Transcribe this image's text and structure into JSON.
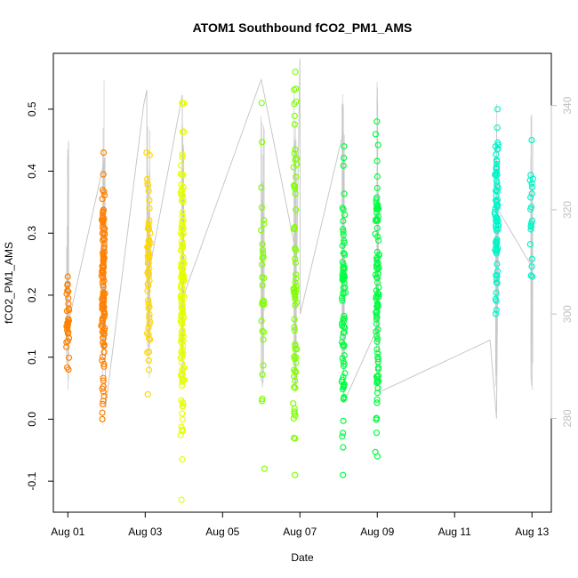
{
  "chart_data": {
    "type": "scatter",
    "title": "ATOM1 Southbound fCO2_PM1_AMS",
    "xlabel": "Date",
    "ylabel": "fCO2_PM1_AMS",
    "xlim": [
      "2016-07-31T15:00",
      "2016-08-13T12:00"
    ],
    "ylim": [
      -0.15,
      0.59
    ],
    "x_ticks": [
      "Aug 01",
      "Aug 03",
      "Aug 05",
      "Aug 07",
      "Aug 09",
      "Aug 11",
      "Aug 13"
    ],
    "y_ticks": [
      -0.1,
      0.0,
      0.1,
      0.2,
      0.3,
      0.4,
      0.5
    ],
    "right_axis": {
      "ylim": [
        262,
        350
      ],
      "ticks": [
        280,
        300,
        320,
        340
      ],
      "color": "#bfbfbf",
      "series_name": ""
    },
    "grid": false,
    "legend": "none",
    "series": [
      {
        "color": "#ff8000",
        "clusters": [
          {
            "date": "2016-08-01T00:00",
            "ymin": 0.08,
            "ymax": 0.23,
            "n": 30
          },
          {
            "date": "2016-08-01T22:00",
            "ymin": 0.0,
            "ymax": 0.43,
            "n": 120
          }
        ]
      },
      {
        "color": "#ffd700",
        "clusters": [
          {
            "date": "2016-08-03T02:00",
            "ymin": 0.04,
            "ymax": 0.43,
            "n": 60
          }
        ]
      },
      {
        "color": "#e6ff00",
        "clusters": [
          {
            "date": "2016-08-03T23:00",
            "ymin": -0.13,
            "ymax": 0.51,
            "n": 140
          }
        ]
      },
      {
        "color": "#80ff00",
        "clusters": [
          {
            "date": "2016-08-06T01:00",
            "ymin": -0.08,
            "ymax": 0.51,
            "n": 30
          },
          {
            "date": "2016-08-06T21:00",
            "ymin": -0.09,
            "ymax": 0.56,
            "n": 70
          }
        ]
      },
      {
        "color": "#00ff40",
        "clusters": [
          {
            "date": "2016-08-08T03:00",
            "ymin": -0.09,
            "ymax": 0.44,
            "n": 80
          },
          {
            "date": "2016-08-09T00:00",
            "ymin": -0.06,
            "ymax": 0.48,
            "n": 100
          }
        ]
      },
      {
        "color": "#00f5c8",
        "clusters": [
          {
            "date": "2016-08-12T02:00",
            "ymin": 0.17,
            "ymax": 0.5,
            "n": 80
          },
          {
            "date": "2016-08-13T00:00",
            "ymin": 0.23,
            "ymax": 0.45,
            "n": 20
          }
        ]
      }
    ],
    "line_series": {
      "color": "#c8c8c8",
      "axis": "right",
      "points": [
        {
          "date": "2016-08-01T00:00",
          "y": 330
        },
        {
          "date": "2016-08-01T00:10",
          "y": 298
        },
        {
          "date": "2016-08-01T23:00",
          "y": 330
        },
        {
          "date": "2016-08-01T23:10",
          "y": 300
        },
        {
          "date": "2016-08-01T23:20",
          "y": 282
        },
        {
          "date": "2016-08-02T23:00",
          "y": 340
        },
        {
          "date": "2016-08-03T01:00",
          "y": 343
        },
        {
          "date": "2016-08-03T01:10",
          "y": 306
        },
        {
          "date": "2016-08-03T23:00",
          "y": 342
        },
        {
          "date": "2016-08-03T23:10",
          "y": 303
        },
        {
          "date": "2016-08-06T00:00",
          "y": 345
        },
        {
          "date": "2016-08-06T22:00",
          "y": 311
        },
        {
          "date": "2016-08-07T00:00",
          "y": 349
        },
        {
          "date": "2016-08-07T00:10",
          "y": 300
        },
        {
          "date": "2016-08-08T03:00",
          "y": 335
        },
        {
          "date": "2016-08-08T03:10",
          "y": 283
        },
        {
          "date": "2016-08-09T01:00",
          "y": 298
        },
        {
          "date": "2016-08-09T01:10",
          "y": 285
        },
        {
          "date": "2016-08-11T22:00",
          "y": 295
        },
        {
          "date": "2016-08-12T02:00",
          "y": 280
        },
        {
          "date": "2016-08-12T03:00",
          "y": 320
        },
        {
          "date": "2016-08-13T00:00",
          "y": 309
        }
      ]
    }
  }
}
